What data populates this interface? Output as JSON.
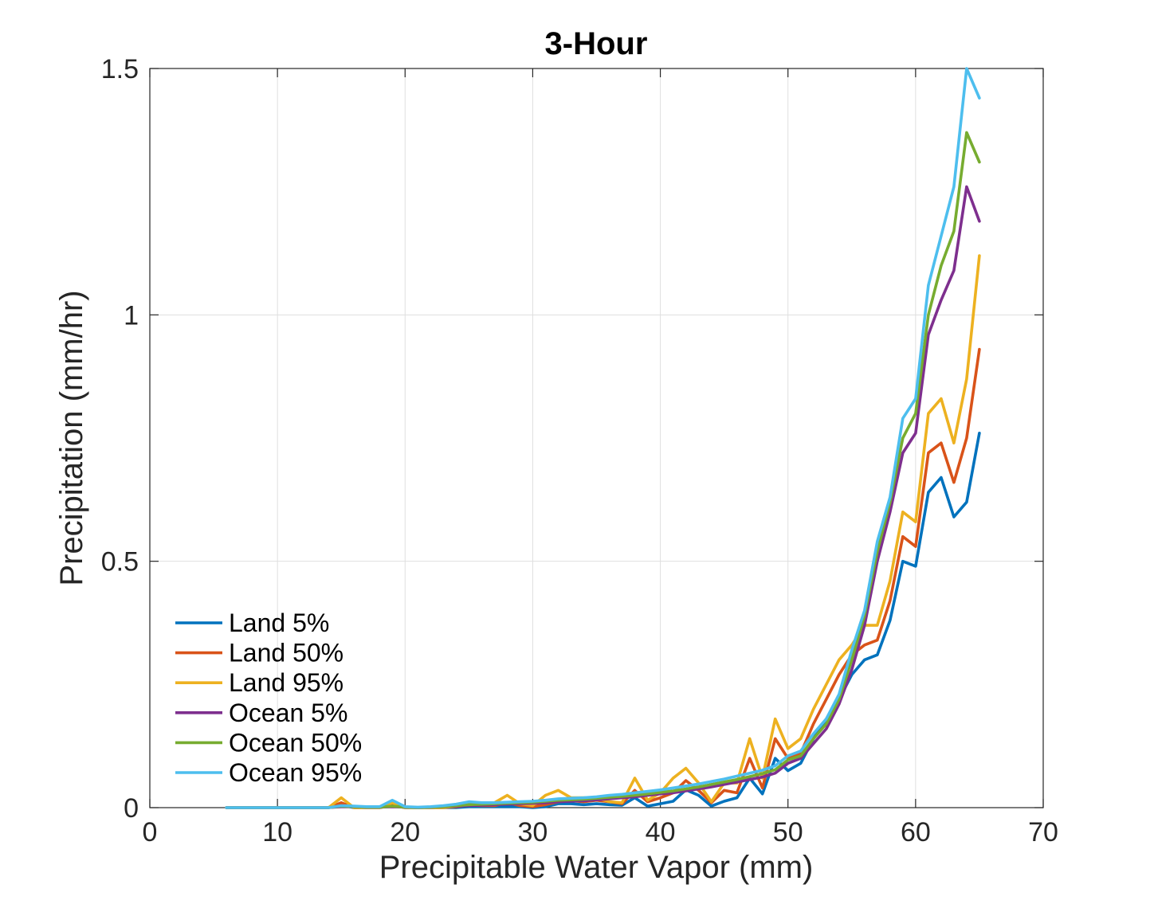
{
  "chart_data": {
    "type": "line",
    "title": "3-Hour",
    "xlabel": "Precipitable Water Vapor (mm)",
    "ylabel": "Precipitation (mm/hr)",
    "xlim": [
      0,
      70
    ],
    "ylim": [
      0,
      1.5
    ],
    "xticks": [
      0,
      10,
      20,
      30,
      40,
      50,
      60,
      70
    ],
    "yticks": [
      0,
      0.5,
      1,
      1.5
    ],
    "xtick_labels": [
      "0",
      "10",
      "20",
      "30",
      "40",
      "50",
      "60",
      "70"
    ],
    "ytick_labels": [
      "0",
      "0.5",
      "1",
      "1.5"
    ],
    "grid": true,
    "legend_position": "bottom-left",
    "x": [
      6,
      7,
      8,
      9,
      10,
      11,
      12,
      13,
      14,
      15,
      16,
      17,
      18,
      19,
      20,
      21,
      22,
      23,
      24,
      25,
      26,
      27,
      28,
      29,
      30,
      31,
      32,
      33,
      34,
      35,
      36,
      37,
      38,
      39,
      40,
      41,
      42,
      43,
      44,
      45,
      46,
      47,
      48,
      49,
      50,
      51,
      52,
      53,
      54,
      55,
      56,
      57,
      58,
      59,
      60,
      61,
      62,
      63,
      64,
      65
    ],
    "series": [
      {
        "name": "Land 5%",
        "color": "#0072BD",
        "values": [
          0,
          0,
          0,
          0,
          0,
          0,
          0,
          0,
          0,
          0.005,
          0,
          0,
          0,
          0.005,
          0,
          0,
          0,
          0,
          0,
          0.002,
          0.002,
          0.002,
          0.002,
          0.002,
          0,
          0.002,
          0.008,
          0.008,
          0.006,
          0.008,
          0.006,
          0.005,
          0.02,
          0.003,
          0.008,
          0.013,
          0.036,
          0.025,
          0.003,
          0.013,
          0.02,
          0.06,
          0.028,
          0.1,
          0.075,
          0.09,
          0.14,
          0.18,
          0.22,
          0.27,
          0.3,
          0.31,
          0.38,
          0.5,
          0.49,
          0.64,
          0.67,
          0.59,
          0.62,
          0.76
        ]
      },
      {
        "name": "Land 50%",
        "color": "#D95319",
        "values": [
          0,
          0,
          0,
          0,
          0,
          0,
          0,
          0,
          0,
          0.01,
          0,
          0,
          0,
          0.005,
          0,
          0,
          0,
          0,
          0.002,
          0.005,
          0.004,
          0.004,
          0.01,
          0.004,
          0.002,
          0.006,
          0.012,
          0.014,
          0.012,
          0.015,
          0.012,
          0.008,
          0.035,
          0.012,
          0.02,
          0.03,
          0.055,
          0.035,
          0.01,
          0.035,
          0.03,
          0.1,
          0.04,
          0.14,
          0.1,
          0.11,
          0.17,
          0.22,
          0.27,
          0.31,
          0.33,
          0.34,
          0.42,
          0.55,
          0.53,
          0.72,
          0.74,
          0.66,
          0.75,
          0.93
        ]
      },
      {
        "name": "Land 95%",
        "color": "#EDB120",
        "values": [
          0,
          0,
          0,
          0,
          0,
          0,
          0,
          0,
          0,
          0.02,
          0,
          0,
          0,
          0.01,
          0,
          0,
          0,
          0,
          0.003,
          0.008,
          0.006,
          0.01,
          0.025,
          0.008,
          0.004,
          0.025,
          0.035,
          0.02,
          0.02,
          0.02,
          0.012,
          0.01,
          0.06,
          0.015,
          0.03,
          0.06,
          0.08,
          0.05,
          0.012,
          0.05,
          0.05,
          0.14,
          0.06,
          0.18,
          0.12,
          0.14,
          0.2,
          0.25,
          0.3,
          0.33,
          0.37,
          0.37,
          0.46,
          0.6,
          0.58,
          0.8,
          0.83,
          0.74,
          0.87,
          1.12
        ]
      },
      {
        "name": "Ocean 5%",
        "color": "#7E2F8E",
        "values": [
          0,
          0,
          0,
          0,
          0,
          0,
          0,
          0,
          0,
          0.002,
          0.002,
          0.001,
          0.001,
          0.002,
          0.001,
          0,
          0.001,
          0.002,
          0.003,
          0.004,
          0.005,
          0.006,
          0.007,
          0.008,
          0.009,
          0.01,
          0.012,
          0.013,
          0.014,
          0.016,
          0.018,
          0.02,
          0.022,
          0.025,
          0.028,
          0.03,
          0.034,
          0.038,
          0.042,
          0.047,
          0.052,
          0.057,
          0.062,
          0.07,
          0.09,
          0.1,
          0.13,
          0.16,
          0.21,
          0.28,
          0.37,
          0.5,
          0.6,
          0.72,
          0.76,
          0.96,
          1.03,
          1.09,
          1.26,
          1.19
        ]
      },
      {
        "name": "Ocean 50%",
        "color": "#77AC30",
        "values": [
          0,
          0,
          0,
          0,
          0,
          0,
          0,
          0,
          0,
          0.003,
          0.002,
          0.001,
          0.001,
          0.003,
          0.001,
          0,
          0.001,
          0.002,
          0.004,
          0.006,
          0.007,
          0.008,
          0.009,
          0.01,
          0.011,
          0.013,
          0.015,
          0.016,
          0.017,
          0.019,
          0.021,
          0.023,
          0.025,
          0.028,
          0.031,
          0.034,
          0.038,
          0.042,
          0.047,
          0.052,
          0.057,
          0.063,
          0.069,
          0.077,
          0.097,
          0.105,
          0.14,
          0.17,
          0.22,
          0.3,
          0.39,
          0.52,
          0.62,
          0.75,
          0.8,
          1.0,
          1.1,
          1.17,
          1.37,
          1.31
        ]
      },
      {
        "name": "Ocean 95%",
        "color": "#4DBEEE",
        "values": [
          0,
          0,
          0,
          0,
          0,
          0,
          0,
          0,
          0,
          0.004,
          0.003,
          0.002,
          0.002,
          0.015,
          0.002,
          0.001,
          0.002,
          0.004,
          0.007,
          0.012,
          0.01,
          0.01,
          0.011,
          0.012,
          0.013,
          0.015,
          0.018,
          0.019,
          0.02,
          0.022,
          0.025,
          0.027,
          0.03,
          0.033,
          0.036,
          0.04,
          0.044,
          0.048,
          0.053,
          0.058,
          0.064,
          0.07,
          0.076,
          0.085,
          0.105,
          0.115,
          0.15,
          0.18,
          0.23,
          0.32,
          0.4,
          0.54,
          0.63,
          0.79,
          0.83,
          1.06,
          1.16,
          1.26,
          1.5,
          1.44
        ]
      }
    ]
  }
}
